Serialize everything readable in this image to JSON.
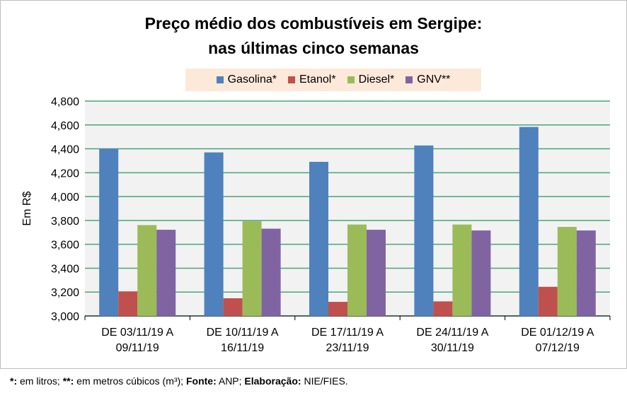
{
  "chart_data": {
    "type": "bar",
    "title": "Preço médio dos combustíveis em Sergipe:",
    "subtitle": "nas últimas cinco semanas",
    "ylabel": "Em R$",
    "xlabel": "",
    "ylim": [
      3000,
      4800
    ],
    "yticks": [
      "3,000",
      "3,200",
      "3,400",
      "3,600",
      "3,800",
      "4,000",
      "4,200",
      "4,400",
      "4,600",
      "4,800"
    ],
    "grid": true,
    "legend_position": "top",
    "categories": [
      [
        "DE 03/11/19 A",
        "09/11/19"
      ],
      [
        "DE 10/11/19 A",
        "16/11/19"
      ],
      [
        "DE 17/11/19 A",
        "23/11/19"
      ],
      [
        "DE 24/11/19 A",
        "30/11/19"
      ],
      [
        "DE 01/12/19 A",
        "07/12/19"
      ]
    ],
    "series": [
      {
        "name": "Gasolina*",
        "color": "#4f81bd",
        "values": [
          4.4,
          4.37,
          4.291,
          4.428,
          4.583
        ]
      },
      {
        "name": "Etanol*",
        "color": "#c0504d",
        "values": [
          3.206,
          3.148,
          3.118,
          3.122,
          3.244
        ]
      },
      {
        "name": "Diesel*",
        "color": "#9bbb59",
        "values": [
          3.761,
          3.794,
          3.766,
          3.766,
          3.746
        ]
      },
      {
        "name": "GNV**",
        "color": "#8064a2",
        "values": [
          3.722,
          3.731,
          3.722,
          3.716,
          3.716
        ]
      }
    ]
  },
  "footnote": {
    "a": "*:",
    "b": " em litros; ",
    "c": "**:",
    "d": " em metros cúbicos (m³); ",
    "e": "Fonte:",
    "f": " ANP; ",
    "g": "Elaboração:",
    "h": " NIE/FIES."
  }
}
